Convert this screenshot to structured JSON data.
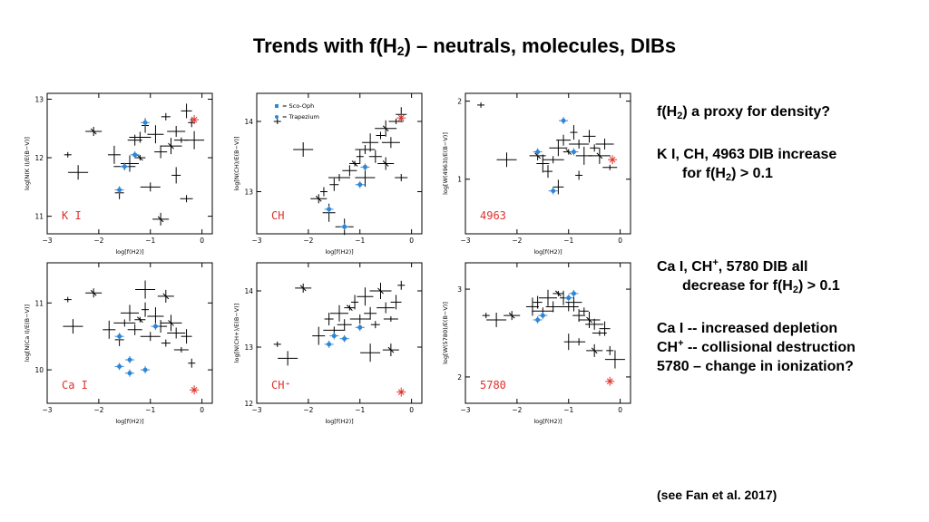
{
  "title": {
    "main": "Trends with f(H",
    "sub": "2",
    "rest": ") – neutrals, molecules, DIBs"
  },
  "colors": {
    "axis": "#000000",
    "scooph": "#2f86d4",
    "tag": "#e0302a",
    "background": "#ffffff"
  },
  "legend": {
    "scooph": "= Sco-Oph",
    "trapezium": "= Trapezium"
  },
  "notes_top": {
    "line1_a": "f(H",
    "line1_sub": "2",
    "line1_b": ") a proxy for density?",
    "line2": "K I, CH, 4963 DIB increase",
    "line3_a": "for f(H",
    "line3_sub": "2",
    "line3_b": ") > 0.1"
  },
  "notes_bottom": {
    "line1_a": "Ca I, CH",
    "line1_sup": "+",
    "line1_b": ", 5780 DIB all",
    "line2_a": "decrease for f(H",
    "line2_sub": "2",
    "line2_b": ") > 0.1",
    "line3": "Ca I -- increased depletion",
    "line4_a": "CH",
    "line4_sup": "+",
    "line4_b": " -- collisional destruction",
    "line5": "5780 – change in ionization?"
  },
  "citation": "(see Fan et al. 2017)",
  "chart_data": [
    {
      "type": "scatter",
      "tag": "K I",
      "xlabel": "log[f(H2)]",
      "ylabel": "log[N(K I)/E(B−V)]",
      "xlim": [
        -3,
        0.2
      ],
      "ylim": [
        10.7,
        13.1
      ],
      "xticks": [
        -3,
        -2,
        -1,
        0
      ],
      "yticks": [
        11,
        12,
        13
      ],
      "points": [
        [
          -2.6,
          12.05
        ],
        [
          -2.4,
          11.75
        ],
        [
          -2.1,
          12.45
        ],
        [
          -1.7,
          12.05
        ],
        [
          -1.6,
          11.4
        ],
        [
          -1.5,
          11.85
        ],
        [
          -1.4,
          11.9
        ],
        [
          -1.3,
          12.3
        ],
        [
          -1.2,
          12.0
        ],
        [
          -1.1,
          12.55
        ],
        [
          -1.0,
          11.5
        ],
        [
          -0.9,
          12.4
        ],
        [
          -0.8,
          12.1
        ],
        [
          -0.7,
          12.7
        ],
        [
          -0.6,
          12.2
        ],
        [
          -0.5,
          12.45
        ],
        [
          -0.4,
          12.3
        ],
        [
          -0.3,
          12.8
        ],
        [
          -0.2,
          12.6
        ],
        [
          -0.15,
          12.3
        ],
        [
          -0.8,
          10.95
        ],
        [
          -0.3,
          11.3
        ],
        [
          -0.5,
          11.7
        ],
        [
          -1.2,
          12.35
        ]
      ],
      "highlight": [
        [
          -1.6,
          11.45
        ],
        [
          -1.5,
          11.85
        ],
        [
          -1.3,
          12.05
        ],
        [
          -1.1,
          12.6
        ]
      ],
      "red": [
        [
          -0.15,
          12.65
        ]
      ]
    },
    {
      "type": "scatter",
      "tag": "CH",
      "xlabel": "log[f(H2)]",
      "ylabel": "log[N(CH)/E(B−V)]",
      "xlim": [
        -3,
        0.2
      ],
      "ylim": [
        12.4,
        14.4
      ],
      "xticks": [
        -3,
        -2,
        -1,
        0
      ],
      "yticks": [
        13,
        14
      ],
      "points": [
        [
          -2.6,
          14.0
        ],
        [
          -2.1,
          13.6
        ],
        [
          -1.8,
          12.9
        ],
        [
          -1.6,
          12.7
        ],
        [
          -1.5,
          13.1
        ],
        [
          -1.4,
          13.2
        ],
        [
          -1.3,
          12.5
        ],
        [
          -1.2,
          13.3
        ],
        [
          -1.1,
          13.4
        ],
        [
          -1.0,
          13.5
        ],
        [
          -0.9,
          13.6
        ],
        [
          -0.8,
          13.7
        ],
        [
          -0.7,
          13.5
        ],
        [
          -0.6,
          13.8
        ],
        [
          -0.5,
          13.9
        ],
        [
          -0.4,
          13.7
        ],
        [
          -0.3,
          14.0
        ],
        [
          -0.2,
          14.1
        ],
        [
          -1.7,
          13.0
        ],
        [
          -0.9,
          13.2
        ],
        [
          -0.5,
          13.4
        ],
        [
          -0.2,
          13.2
        ]
      ],
      "highlight": [
        [
          -1.6,
          12.75
        ],
        [
          -1.3,
          12.5
        ],
        [
          -1.0,
          13.1
        ],
        [
          -0.9,
          13.35
        ]
      ],
      "red": [
        [
          -0.2,
          14.05
        ]
      ]
    },
    {
      "type": "scatter",
      "tag": "4963",
      "xlabel": "log[f(H2)]",
      "ylabel": "log[W(4963)/E(B−V)]",
      "xlim": [
        -3,
        0.2
      ],
      "ylim": [
        0.3,
        2.1
      ],
      "xticks": [
        -3,
        -2,
        -1,
        0
      ],
      "yticks": [
        1,
        2
      ],
      "points": [
        [
          -2.7,
          1.95
        ],
        [
          -2.2,
          1.25
        ],
        [
          -1.6,
          1.3
        ],
        [
          -1.5,
          1.2
        ],
        [
          -1.4,
          1.1
        ],
        [
          -1.3,
          1.25
        ],
        [
          -1.2,
          1.4
        ],
        [
          -1.1,
          1.5
        ],
        [
          -1.0,
          1.35
        ],
        [
          -0.9,
          1.6
        ],
        [
          -0.8,
          1.45
        ],
        [
          -0.7,
          1.3
        ],
        [
          -0.6,
          1.55
        ],
        [
          -0.5,
          1.4
        ],
        [
          -0.4,
          1.3
        ],
        [
          -0.3,
          1.45
        ],
        [
          -0.2,
          1.15
        ],
        [
          -1.2,
          0.9
        ],
        [
          -0.8,
          1.05
        ]
      ],
      "highlight": [
        [
          -1.6,
          1.35
        ],
        [
          -1.3,
          0.85
        ],
        [
          -1.1,
          1.75
        ],
        [
          -0.9,
          1.35
        ]
      ],
      "red": [
        [
          -0.15,
          1.25
        ]
      ]
    },
    {
      "type": "scatter",
      "tag": "Ca I",
      "xlabel": "log[f(H2)]",
      "ylabel": "log[N(Ca I)/E(B−V)]",
      "xlim": [
        -3,
        0.2
      ],
      "ylim": [
        9.5,
        11.6
      ],
      "xticks": [
        -3,
        -2,
        -1,
        0
      ],
      "yticks": [
        10,
        11
      ],
      "points": [
        [
          -2.6,
          11.05
        ],
        [
          -2.5,
          10.65
        ],
        [
          -2.1,
          11.15
        ],
        [
          -1.8,
          10.6
        ],
        [
          -1.6,
          10.45
        ],
        [
          -1.5,
          10.7
        ],
        [
          -1.4,
          10.85
        ],
        [
          -1.3,
          10.6
        ],
        [
          -1.2,
          10.75
        ],
        [
          -1.1,
          10.9
        ],
        [
          -1.0,
          10.5
        ],
        [
          -0.9,
          10.8
        ],
        [
          -0.8,
          10.65
        ],
        [
          -0.7,
          10.4
        ],
        [
          -0.6,
          10.7
        ],
        [
          -0.5,
          10.55
        ],
        [
          -0.4,
          10.3
        ],
        [
          -0.3,
          10.5
        ],
        [
          -0.2,
          10.1
        ],
        [
          -1.1,
          11.2
        ],
        [
          -0.7,
          11.1
        ]
      ],
      "highlight": [
        [
          -1.6,
          10.05
        ],
        [
          -1.6,
          10.5
        ],
        [
          -1.4,
          10.15
        ],
        [
          -1.4,
          9.95
        ],
        [
          -1.1,
          10.0
        ],
        [
          -0.9,
          10.65
        ]
      ],
      "red": [
        [
          -0.15,
          9.7
        ]
      ]
    },
    {
      "type": "scatter",
      "tag": "CH+",
      "xlabel": "log[f(H2)]",
      "ylabel": "log[N(CH+)/E(B−V)]",
      "xlim": [
        -3,
        0.2
      ],
      "ylim": [
        12,
        14.5
      ],
      "xticks": [
        -3,
        -2,
        -1,
        0
      ],
      "yticks": [
        12,
        13,
        14
      ],
      "points": [
        [
          -2.6,
          13.05
        ],
        [
          -2.4,
          12.8
        ],
        [
          -2.1,
          14.05
        ],
        [
          -1.8,
          13.2
        ],
        [
          -1.6,
          13.5
        ],
        [
          -1.5,
          13.3
        ],
        [
          -1.4,
          13.6
        ],
        [
          -1.3,
          13.4
        ],
        [
          -1.2,
          13.7
        ],
        [
          -1.1,
          13.8
        ],
        [
          -1.0,
          13.5
        ],
        [
          -0.9,
          13.9
        ],
        [
          -0.8,
          13.6
        ],
        [
          -0.7,
          13.4
        ],
        [
          -0.6,
          14.0
        ],
        [
          -0.5,
          13.7
        ],
        [
          -0.4,
          13.5
        ],
        [
          -0.3,
          13.8
        ],
        [
          -0.2,
          14.1
        ],
        [
          -0.8,
          12.9
        ],
        [
          -0.4,
          12.95
        ]
      ],
      "highlight": [
        [
          -1.6,
          13.05
        ],
        [
          -1.5,
          13.2
        ],
        [
          -1.3,
          13.15
        ],
        [
          -1.0,
          13.35
        ]
      ],
      "red": [
        [
          -0.2,
          12.2
        ]
      ]
    },
    {
      "type": "scatter",
      "tag": "5780",
      "xlabel": "log[f(H2)]",
      "ylabel": "log[W(5780)/E(B−V)]",
      "xlim": [
        -3,
        0.2
      ],
      "ylim": [
        1.7,
        3.3
      ],
      "xticks": [
        -3,
        -2,
        -1,
        0
      ],
      "yticks": [
        2,
        3
      ],
      "points": [
        [
          -2.6,
          2.7
        ],
        [
          -2.4,
          2.65
        ],
        [
          -2.1,
          2.7
        ],
        [
          -1.7,
          2.8
        ],
        [
          -1.6,
          2.85
        ],
        [
          -1.5,
          2.75
        ],
        [
          -1.4,
          2.9
        ],
        [
          -1.3,
          2.8
        ],
        [
          -1.2,
          2.95
        ],
        [
          -1.1,
          2.9
        ],
        [
          -1.0,
          2.8
        ],
        [
          -0.9,
          2.85
        ],
        [
          -0.8,
          2.7
        ],
        [
          -0.7,
          2.75
        ],
        [
          -0.6,
          2.65
        ],
        [
          -0.5,
          2.6
        ],
        [
          -0.4,
          2.5
        ],
        [
          -0.3,
          2.55
        ],
        [
          -0.2,
          2.3
        ],
        [
          -0.1,
          2.2
        ],
        [
          -0.5,
          2.3
        ],
        [
          -0.8,
          2.4
        ],
        [
          -1.0,
          2.4
        ]
      ],
      "highlight": [
        [
          -1.6,
          2.65
        ],
        [
          -1.5,
          2.7
        ],
        [
          -1.0,
          2.9
        ],
        [
          -0.9,
          2.95
        ]
      ],
      "red": [
        [
          -0.2,
          1.95
        ]
      ]
    }
  ]
}
